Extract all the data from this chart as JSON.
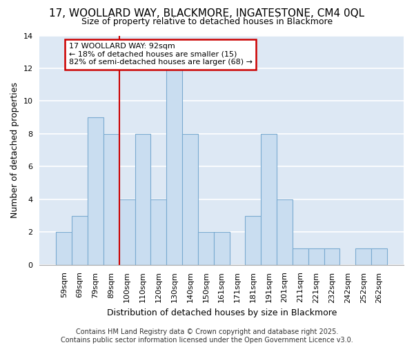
{
  "title": "17, WOOLLARD WAY, BLACKMORE, INGATESTONE, CM4 0QL",
  "subtitle": "Size of property relative to detached houses in Blackmore",
  "xlabel": "Distribution of detached houses by size in Blackmore",
  "ylabel": "Number of detached properties",
  "bar_color": "#c9ddf0",
  "bar_edge_color": "#7aaad0",
  "background_color": "#dde8f4",
  "grid_color": "#ffffff",
  "categories": [
    "59sqm",
    "69sqm",
    "79sqm",
    "89sqm",
    "100sqm",
    "110sqm",
    "120sqm",
    "130sqm",
    "140sqm",
    "150sqm",
    "161sqm",
    "171sqm",
    "181sqm",
    "191sqm",
    "201sqm",
    "211sqm",
    "221sqm",
    "232sqm",
    "242sqm",
    "252sqm",
    "262sqm"
  ],
  "values": [
    2,
    3,
    9,
    8,
    4,
    8,
    4,
    12,
    8,
    2,
    2,
    0,
    3,
    8,
    4,
    1,
    1,
    1,
    0,
    1,
    1
  ],
  "ylim": [
    0,
    14
  ],
  "yticks": [
    0,
    2,
    4,
    6,
    8,
    10,
    12,
    14
  ],
  "property_line_x": 3.5,
  "annotation_text": "17 WOOLLARD WAY: 92sqm\n← 18% of detached houses are smaller (15)\n82% of semi-detached houses are larger (68) →",
  "annotation_box_facecolor": "#ffffff",
  "annotation_border_color": "#cc0000",
  "red_line_color": "#cc0000",
  "fig_facecolor": "#ffffff",
  "footer_line1": "Contains HM Land Registry data © Crown copyright and database right 2025.",
  "footer_line2": "Contains public sector information licensed under the Open Government Licence v3.0.",
  "title_fontsize": 11,
  "subtitle_fontsize": 9,
  "axis_label_fontsize": 9,
  "tick_fontsize": 8,
  "annotation_fontsize": 8,
  "footer_fontsize": 7
}
